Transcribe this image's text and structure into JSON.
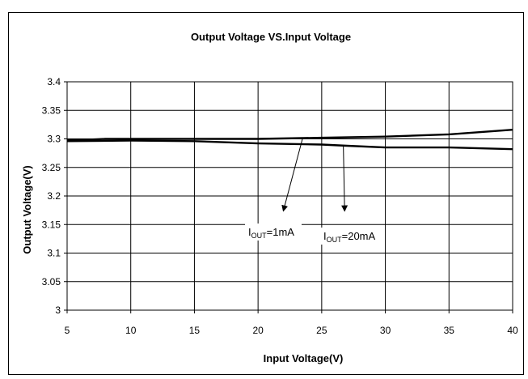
{
  "chart_data": {
    "type": "line",
    "title": "Output Voltage VS.Input Voltage",
    "xlabel": "Input Voltage(V)",
    "ylabel": "Output Voltage(V)",
    "xlim": [
      5,
      40
    ],
    "ylim": [
      3,
      3.4
    ],
    "x_ticks": [
      "5",
      "10",
      "15",
      "20",
      "25",
      "30",
      "35",
      "40"
    ],
    "y_ticks": [
      "3",
      "3.05",
      "3.1",
      "3.15",
      "3.2",
      "3.25",
      "3.3",
      "3.35",
      "3.4"
    ],
    "grid": true,
    "series": [
      {
        "name": "IOUT=1mA",
        "x": [
          5,
          7,
          8,
          10,
          15,
          20,
          25,
          30,
          35,
          40
        ],
        "y": [
          3.298,
          3.299,
          3.3,
          3.3,
          3.3,
          3.3,
          3.302,
          3.304,
          3.308,
          3.316
        ]
      },
      {
        "name": "IOUT=20mA",
        "x": [
          5,
          10,
          15,
          20,
          25,
          27,
          30,
          35,
          40
        ],
        "y": [
          3.296,
          3.297,
          3.296,
          3.292,
          3.29,
          3.288,
          3.285,
          3.285,
          3.282
        ]
      }
    ],
    "annotations": [
      {
        "prefix": "I",
        "sub": "OUT",
        "suffix": "=1mA",
        "arrow_to_x": 22,
        "arrow_to_y": 3.175,
        "arrow_from_x": 23.5,
        "arrow_from_y": 3.301
      },
      {
        "prefix": "I",
        "sub": "OUT",
        "suffix": "=20mA",
        "arrow_to_x": 26.8,
        "arrow_to_y": 3.175,
        "arrow_from_x": 26.7,
        "arrow_from_y": 3.289
      }
    ]
  }
}
